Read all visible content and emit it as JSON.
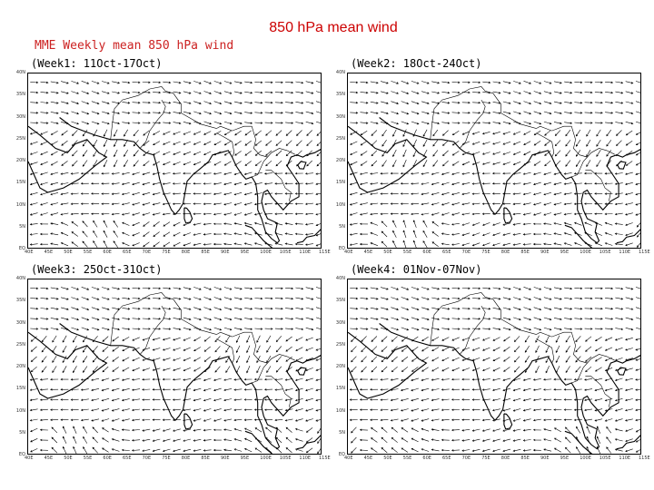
{
  "slide": {
    "title": "850 hPa  mean wind"
  },
  "plot": {
    "title": "MME Weekly mean 850 hPa wind"
  },
  "panels": [
    {
      "label": "(Week1: 11Oct-17Oct)"
    },
    {
      "label": "(Week2: 18Oct-24Oct)"
    },
    {
      "label": "(Week3: 25Oct-31Oct)"
    },
    {
      "label": "(Week4: 01Nov-07Nov)"
    }
  ],
  "map": {
    "lat_labels": [
      "40N",
      "35N",
      "30N",
      "25N",
      "20N",
      "15N",
      "10N",
      "5N",
      "EQ"
    ],
    "lon_labels": [
      "40E",
      "45E",
      "50E",
      "55E",
      "60E",
      "65E",
      "70E",
      "75E",
      "80E",
      "85E",
      "90E",
      "95E",
      "100E",
      "105E",
      "110E",
      "115E"
    ],
    "colors": {
      "title": "#cc2222",
      "slide_title": "#cc0000",
      "lines": "#000000"
    }
  }
}
